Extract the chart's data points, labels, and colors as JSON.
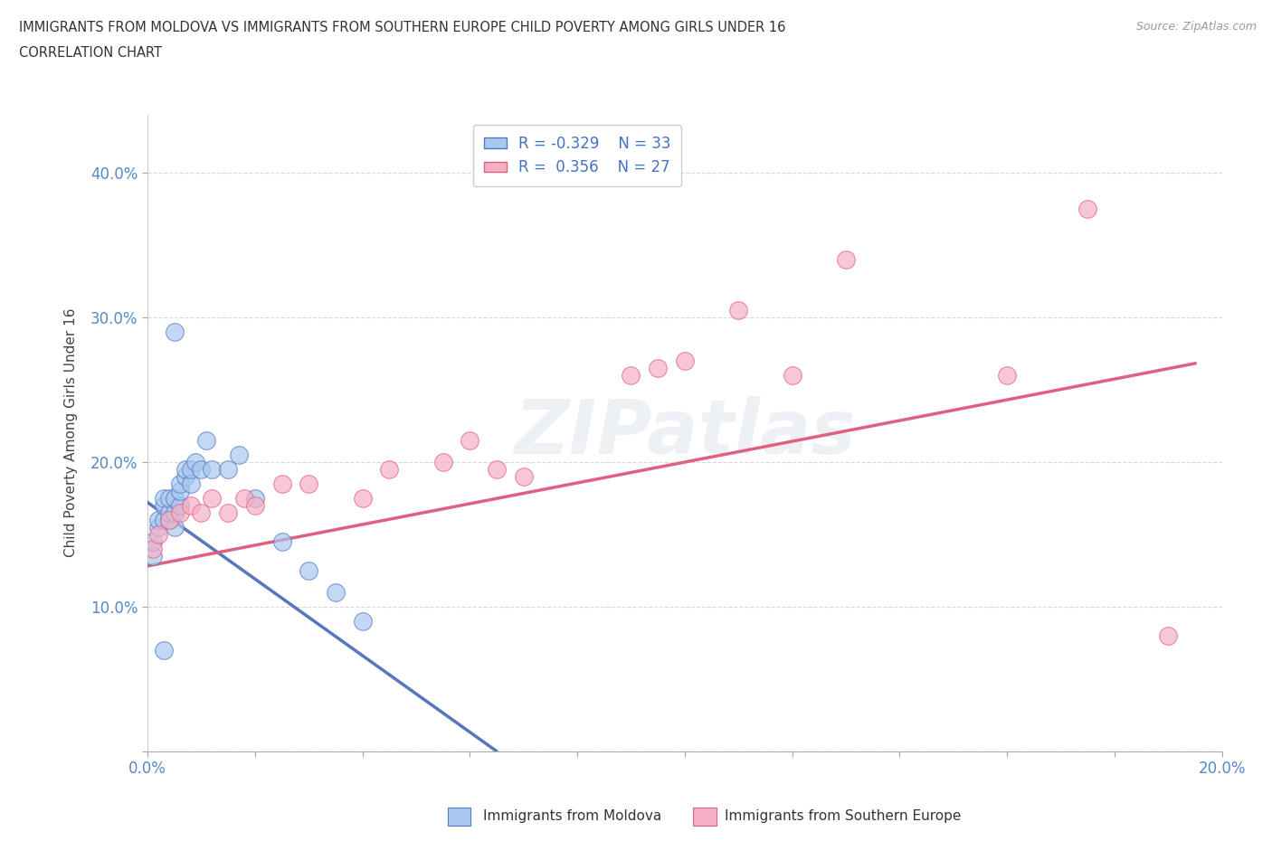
{
  "title_line1": "IMMIGRANTS FROM MOLDOVA VS IMMIGRANTS FROM SOUTHERN EUROPE CHILD POVERTY AMONG GIRLS UNDER 16",
  "title_line2": "CORRELATION CHART",
  "source_text": "Source: ZipAtlas.com",
  "ylabel": "Child Poverty Among Girls Under 16",
  "xlim": [
    0.0,
    0.2
  ],
  "ylim": [
    0.0,
    0.44
  ],
  "ytick_vals": [
    0.0,
    0.1,
    0.2,
    0.3,
    0.4
  ],
  "ytick_labels": [
    "",
    "10.0%",
    "20.0%",
    "30.0%",
    "40.0%"
  ],
  "xtick_vals": [
    0.0,
    0.02,
    0.04,
    0.06,
    0.08,
    0.1,
    0.12,
    0.14,
    0.16,
    0.18,
    0.2
  ],
  "xtick_labels": [
    "0.0%",
    "",
    "",
    "",
    "",
    "",
    "",
    "",
    "",
    "",
    "20.0%"
  ],
  "background_color": "#ffffff",
  "grid_color": "#d0d0d0",
  "watermark_text": "ZIPatlas",
  "color_moldova": "#a8c8f0",
  "color_s_europe": "#f5b0c5",
  "line_color_moldova": "#5577bb",
  "line_color_s_europe": "#e06080",
  "line_color_moldova_dashed": "#aabbdd",
  "moldova_x": [
    0.001,
    0.001,
    0.002,
    0.002,
    0.003,
    0.003,
    0.003,
    0.004,
    0.004,
    0.004,
    0.005,
    0.005,
    0.005,
    0.006,
    0.006,
    0.006,
    0.007,
    0.007,
    0.008,
    0.008,
    0.009,
    0.01,
    0.011,
    0.012,
    0.015,
    0.017,
    0.02,
    0.025,
    0.03,
    0.035,
    0.04,
    0.005,
    0.003
  ],
  "moldova_y": [
    0.135,
    0.145,
    0.155,
    0.16,
    0.16,
    0.17,
    0.175,
    0.16,
    0.165,
    0.175,
    0.155,
    0.165,
    0.175,
    0.17,
    0.18,
    0.185,
    0.19,
    0.195,
    0.185,
    0.195,
    0.2,
    0.195,
    0.215,
    0.195,
    0.195,
    0.205,
    0.175,
    0.145,
    0.125,
    0.11,
    0.09,
    0.29,
    0.07
  ],
  "s_europe_x": [
    0.001,
    0.002,
    0.004,
    0.006,
    0.008,
    0.01,
    0.012,
    0.015,
    0.018,
    0.02,
    0.025,
    0.03,
    0.04,
    0.045,
    0.055,
    0.06,
    0.065,
    0.07,
    0.09,
    0.095,
    0.1,
    0.11,
    0.12,
    0.13,
    0.16,
    0.175,
    0.19
  ],
  "s_europe_y": [
    0.14,
    0.15,
    0.16,
    0.165,
    0.17,
    0.165,
    0.175,
    0.165,
    0.175,
    0.17,
    0.185,
    0.185,
    0.175,
    0.195,
    0.2,
    0.215,
    0.195,
    0.19,
    0.26,
    0.265,
    0.27,
    0.305,
    0.26,
    0.34,
    0.26,
    0.375,
    0.08
  ]
}
